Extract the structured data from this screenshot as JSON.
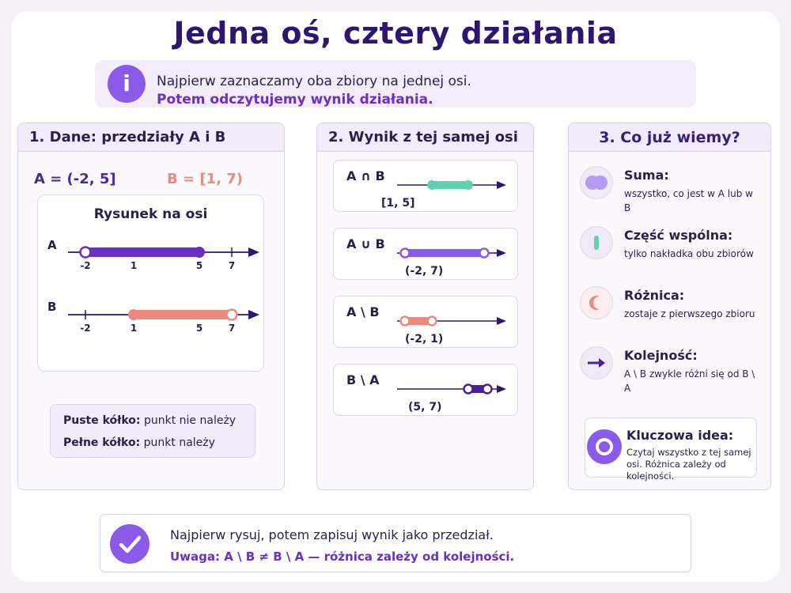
{
  "title": "Jedna oś, cztery działania",
  "info": {
    "icon": "i",
    "line1": "Najpierw zaznaczamy oba zbiory na jednej osi.",
    "line2": "Potem odczytujemy wynik działania."
  },
  "panel1": {
    "heading": "1. Dane: przedziały A i B",
    "setA": "A = (-2, 5]",
    "setB": "B = [1, 7)",
    "drawing_title": "Rysunek na osi",
    "axisA_label": "A",
    "axisB_label": "B",
    "ticks": [
      "-2",
      "1",
      "5",
      "7"
    ],
    "legend": {
      "empty_bold": "Puste kółko:",
      "empty_text": " punkt nie należy",
      "full_bold": "Pełne kółko:",
      "full_text": " punkt należy"
    }
  },
  "panel2": {
    "heading": "2. Wynik z tej samej osi",
    "results": [
      {
        "op": "A ∩ B",
        "result": "[1, 5]"
      },
      {
        "op": "A ∪ B",
        "result": "(-2, 7)"
      },
      {
        "op": "A \\ B",
        "result": "(-2, 1)"
      },
      {
        "op": "B \\ A",
        "result": "(5, 7)"
      }
    ]
  },
  "panel3": {
    "heading": "3. Co już wiemy?",
    "facts": [
      {
        "title": "Suma:",
        "desc": "wszystko, co jest w A lub w B",
        "icon": "union-icon"
      },
      {
        "title": "Część wspólna:",
        "desc": "tylko nakładka obu zbiorów",
        "icon": "intersection-icon"
      },
      {
        "title": "Różnica:",
        "desc": "zostaje z pierwszego zbioru",
        "icon": "difference-icon"
      },
      {
        "title": "Kolejność:",
        "desc": "A \\ B zwykle różni się od B \\ A",
        "icon": "arrow-right-icon"
      }
    ],
    "key": {
      "title": "Kluczowa idea:",
      "desc": "Czytaj wszystko z tej samej osi. Różnica zależy od kolejności."
    }
  },
  "footer": {
    "line1": "Najpierw rysuj, potem zapisuj wynik jako przedział.",
    "line2": "Uwaga:  A \\ B ≠ B \\ A  — różnica zależy od kolejności."
  },
  "colors": {
    "purple": "#6a2fc4",
    "violet": "#8b5ae8",
    "coral": "#ec8a7e",
    "teal": "#5fd0b0",
    "dark": "#2e1670"
  }
}
